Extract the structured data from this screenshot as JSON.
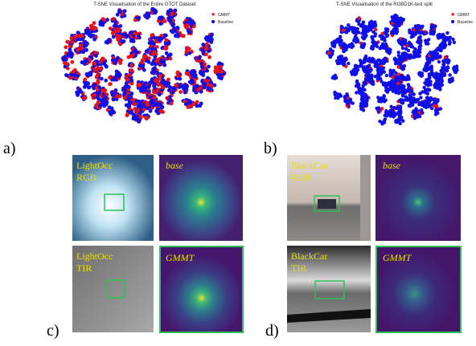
{
  "tsne": [
    {
      "label": "a)",
      "title": "T-SNE Visualisation of the Entire GTOT Dataset",
      "legend": [
        "GMMT",
        "Baseline"
      ]
    },
    {
      "label": "b)",
      "title": "T-SNE Visualisation of the RGBD1K-test split",
      "legend": [
        "GMMT",
        "Baseline"
      ]
    }
  ],
  "tracking": [
    {
      "label": "c)",
      "sequence": "LightOcc",
      "rows": [
        {
          "modality": "RGB",
          "method": "base"
        },
        {
          "modality": "TIR",
          "method": "GMMT"
        }
      ]
    },
    {
      "label": "d)",
      "sequence": "BlackCar",
      "rows": [
        {
          "modality": "RGB",
          "method": "base"
        },
        {
          "modality": "TIR",
          "method": "GMMT"
        }
      ]
    }
  ]
}
